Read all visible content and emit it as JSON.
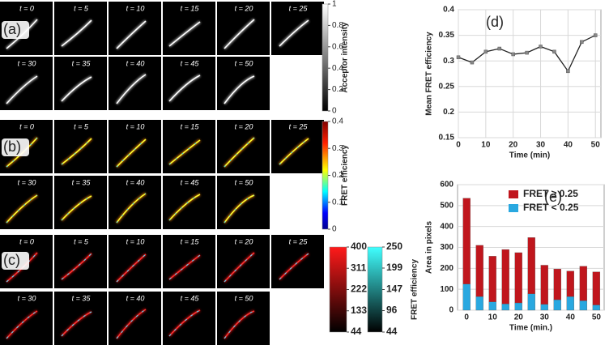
{
  "panels": [
    {
      "label": "(a)",
      "rows": [
        [
          "t = 0",
          "t = 5",
          "t = 10",
          "t = 15",
          "t = 20",
          "t = 25"
        ],
        [
          "t = 30",
          "t = 35",
          "t = 40",
          "t = 45",
          "t = 50"
        ]
      ]
    },
    {
      "label": "(b)",
      "rows": [
        [
          "t = 0",
          "t = 5",
          "t = 10",
          "t = 15",
          "t = 20",
          "t = 25"
        ],
        [
          "t = 30",
          "t = 35",
          "t = 40",
          "t = 45",
          "t = 50"
        ]
      ]
    },
    {
      "label": "(c)",
      "rows": [
        [
          "t = 0",
          "t = 5",
          "t = 10",
          "t = 15",
          "t = 20",
          "t = 25"
        ],
        [
          "t = 30",
          "t = 35",
          "t = 40",
          "t = 45",
          "t = 50"
        ]
      ]
    }
  ],
  "colorbars": [
    {
      "ticks": [
        1,
        0.8,
        0.6,
        0.4,
        0.2,
        0
      ],
      "label": "Acceptor intensity"
    },
    {
      "ticks": [
        0.4,
        0.3,
        0.2,
        0.1,
        0
      ],
      "label": "FRET efficiency"
    },
    {
      "ticks": [
        400,
        311,
        222,
        133,
        44
      ]
    },
    {
      "ticks": [
        250,
        199,
        147,
        96,
        44
      ],
      "label": "FRET efficiency"
    }
  ],
  "chart_data": [
    {
      "type": "line",
      "annotation": "(d)",
      "xlabel": "Time (min)",
      "ylabel": "Mean FRET efficiency",
      "x": [
        0,
        5,
        10,
        15,
        20,
        25,
        30,
        35,
        40,
        45,
        50
      ],
      "values": [
        0.307,
        0.297,
        0.318,
        0.324,
        0.313,
        0.316,
        0.328,
        0.318,
        0.28,
        0.337,
        0.35
      ],
      "color": "#222222",
      "xlim": [
        0,
        52
      ],
      "xticks": [
        0,
        10,
        20,
        30,
        40,
        50
      ],
      "ylim": [
        0.15,
        0.4
      ],
      "yticks": [
        0.15,
        0.2,
        0.25,
        0.3,
        0.35,
        0.4
      ],
      "grid": true
    },
    {
      "type": "bar",
      "stacked": true,
      "annotation": "(e)",
      "xlabel": "Time (min.)",
      "ylabel": "Area in pixels",
      "x": [
        0,
        5,
        10,
        15,
        20,
        25,
        30,
        35,
        40,
        45,
        50
      ],
      "series": [
        {
          "name": "FRET ≥ 0.25",
          "color": "#c0161d",
          "values": [
            410,
            245,
            218,
            260,
            240,
            269,
            187,
            147,
            122,
            165,
            158
          ]
        },
        {
          "name": "FRET < 0.25",
          "color": "#29a8e0",
          "values": [
            125,
            65,
            40,
            30,
            35,
            78,
            28,
            50,
            65,
            45,
            25
          ]
        }
      ],
      "xlim": [
        -3.5,
        53
      ],
      "xticks": [
        0,
        10,
        20,
        30,
        40,
        50
      ],
      "ylim": [
        0,
        600
      ],
      "yticks": [
        0,
        100,
        200,
        300,
        400,
        500,
        600
      ],
      "grid": true,
      "legend": "upper right"
    }
  ]
}
